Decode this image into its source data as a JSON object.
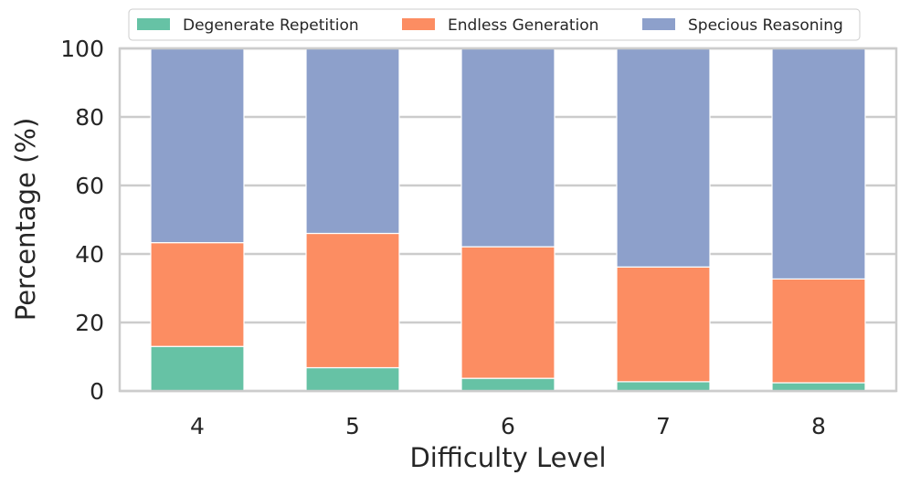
{
  "chart_data": {
    "type": "bar",
    "stacked": true,
    "title": "",
    "xlabel": "Difficulty Level",
    "ylabel": "Percentage (%)",
    "ylim": [
      0,
      100
    ],
    "yticks": [
      "0",
      "20",
      "40",
      "60",
      "80",
      "100"
    ],
    "categories": [
      "4",
      "5",
      "6",
      "7",
      "8"
    ],
    "grid": true,
    "legend_position": "top",
    "series": [
      {
        "name": "Degenerate Repetition",
        "color": "#66c2a5",
        "values": [
          13.0,
          6.8,
          3.7,
          2.7,
          2.4
        ]
      },
      {
        "name": "Endless Generation",
        "color": "#fc8d62",
        "values": [
          30.3,
          39.2,
          38.4,
          33.5,
          30.3
        ]
      },
      {
        "name": "Specious Reasoning",
        "color": "#8da0cb",
        "values": [
          56.7,
          54.0,
          57.9,
          63.8,
          67.3
        ]
      }
    ]
  }
}
